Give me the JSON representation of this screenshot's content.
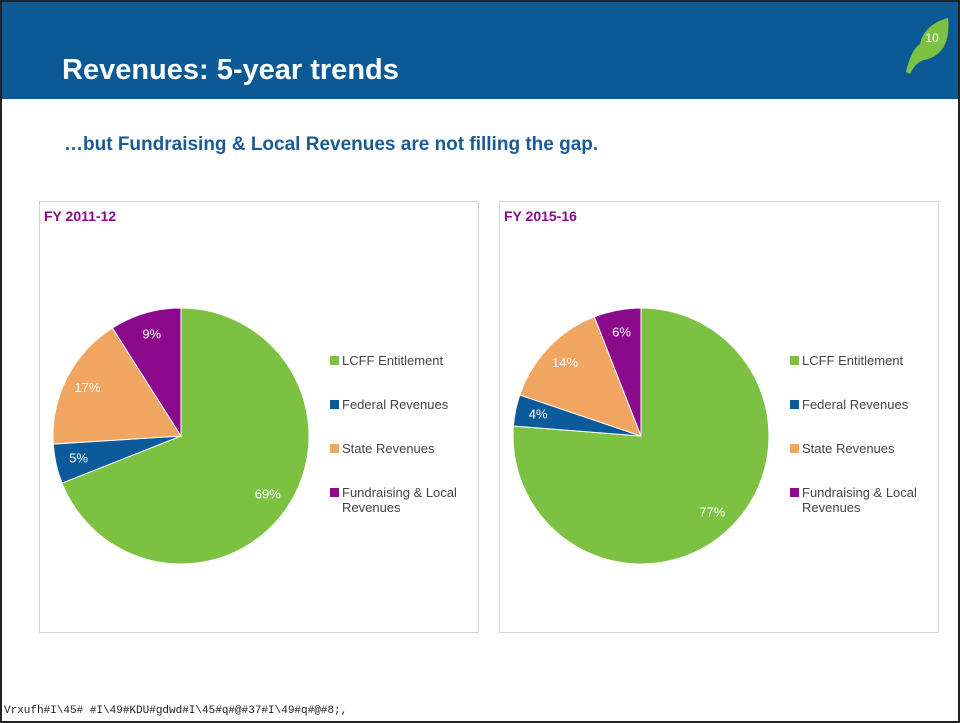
{
  "title": "Revenues: 5-year trends",
  "subtitle": "…but Fundraising & Local Revenues are not filling the gap.",
  "page_number": "10",
  "footer": "Vrxufh#I\\45# #I\\49#KDU#gdwd#I\\45#q#@#37#I\\49#q#@#8;,",
  "chart_data": [
    {
      "type": "pie",
      "title": "FY 2011-12",
      "categories": [
        "LCFF Entitlement",
        "Federal Revenues",
        "State Revenues",
        "Fundraising & Local Revenues"
      ],
      "values": [
        69,
        5,
        17,
        9
      ],
      "value_labels": [
        "69%",
        "5%",
        "17%",
        "9%"
      ],
      "colors": [
        "#7dc142",
        "#0b5a9a",
        "#f0a660",
        "#8b0a8b"
      ]
    },
    {
      "type": "pie",
      "title": "FY 2015-16",
      "categories": [
        "LCFF Entitlement",
        "Federal Revenues",
        "State Revenues",
        "Fundraising & Local Revenues"
      ],
      "values": [
        77,
        4,
        14,
        6
      ],
      "value_labels": [
        "77%",
        "4%",
        "14%",
        "6%"
      ],
      "colors": [
        "#7dc142",
        "#0b5a9a",
        "#f0a660",
        "#8b0a8b"
      ]
    }
  ]
}
